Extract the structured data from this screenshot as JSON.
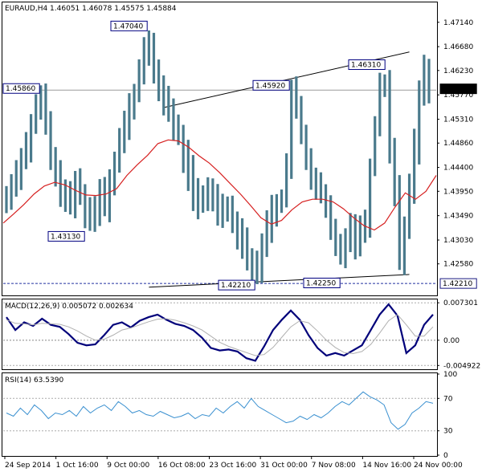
{
  "chart_data": [
    {
      "type": "candlestick",
      "header": "EURAUD,H4  1.46051 1.46078 1.45575 1.45884",
      "y_ticks": [
        "1.47140",
        "1.46680",
        "1.46230",
        "1.45770",
        "1.45310",
        "1.44860",
        "1.44400",
        "1.43950",
        "1.43490",
        "1.43030",
        "1.42580"
      ],
      "ylim": [
        1.42,
        1.475
      ],
      "last_price_label": "1.45884",
      "last_price": 1.45884,
      "price_line": {
        "label": "1.45860",
        "value": 1.4586
      },
      "support_line": {
        "label": "1.42210",
        "value": 1.4221
      },
      "annotations": [
        {
          "label": "1.47040",
          "value": 1.4704
        },
        {
          "label": "1.43130",
          "value": 1.4313
        },
        {
          "label": "1.45920",
          "value": 1.4592
        },
        {
          "label": "1.46310",
          "value": 1.4631
        },
        {
          "label": "1.42210",
          "value": 1.4221
        },
        {
          "label": "1.42250",
          "value": 1.4225
        }
      ],
      "close_series_approx": [
        1.438,
        1.441,
        1.443,
        1.446,
        1.448,
        1.452,
        1.455,
        1.457,
        1.452,
        1.446,
        1.442,
        1.44,
        1.438,
        1.437,
        1.441,
        1.439,
        1.436,
        1.434,
        1.436,
        1.44,
        1.437,
        1.442,
        1.445,
        1.449,
        1.452,
        1.455,
        1.458,
        1.462,
        1.467,
        1.466,
        1.462,
        1.459,
        1.457,
        1.455,
        1.451,
        1.45,
        1.446,
        1.443,
        1.439,
        1.437,
        1.438,
        1.44,
        1.438,
        1.436,
        1.437,
        1.436,
        1.434,
        1.432,
        1.43,
        1.427,
        1.425,
        1.424,
        1.43,
        1.433,
        1.436,
        1.437,
        1.438,
        1.445,
        1.458,
        1.455,
        1.45,
        1.446,
        1.442,
        1.44,
        1.439,
        1.436,
        1.432,
        1.429,
        1.428,
        1.431,
        1.433,
        1.43,
        1.432,
        1.434,
        1.444,
        1.452,
        1.46,
        1.46,
        1.447,
        1.44,
        1.427,
        1.433,
        1.44,
        1.448,
        1.458,
        1.462,
        1.459
      ],
      "ma_series_approx": [
        1.4335,
        1.4352,
        1.437,
        1.439,
        1.4405,
        1.4412,
        1.4407,
        1.4397,
        1.4388,
        1.4387,
        1.439,
        1.44,
        1.4425,
        1.4445,
        1.4463,
        1.4485,
        1.4492,
        1.449,
        1.4478,
        1.4462,
        1.4448,
        1.443,
        1.441,
        1.439,
        1.4368,
        1.4345,
        1.4333,
        1.434,
        1.436,
        1.4375,
        1.438,
        1.438,
        1.4375,
        1.4362,
        1.4345,
        1.433,
        1.4322,
        1.4335,
        1.4365,
        1.4392,
        1.438,
        1.4395,
        1.4425
      ]
    },
    {
      "type": "line",
      "header": "MACD(12,26,9) 0.005072 0.002634",
      "y_ticks": [
        "0.007301",
        "0.00",
        "-0.004922"
      ],
      "ylim": [
        -0.0055,
        0.0078
      ],
      "series": [
        {
          "name": "MACD",
          "values": [
            0.0045,
            0.002,
            0.0035,
            0.0028,
            0.0042,
            0.003,
            0.0026,
            0.0012,
            -0.0005,
            -0.001,
            -0.0008,
            0.001,
            0.003,
            0.0035,
            0.0025,
            0.0038,
            0.0045,
            0.005,
            0.004,
            0.0032,
            0.0028,
            0.002,
            0.0005,
            -0.0015,
            -0.002,
            -0.0018,
            -0.0022,
            -0.0035,
            -0.004,
            -0.0012,
            0.002,
            0.004,
            0.0058,
            0.004,
            0.001,
            -0.0015,
            -0.003,
            -0.0025,
            -0.003,
            -0.002,
            -0.001,
            0.002,
            0.005,
            0.007,
            0.0048,
            -0.0025,
            -0.001,
            0.003,
            0.005
          ]
        },
        {
          "name": "Signal",
          "values": [
            0.004,
            0.0033,
            0.0032,
            0.003,
            0.0033,
            0.0032,
            0.0031,
            0.0026,
            0.0018,
            0.0008,
            0.0,
            0.0002,
            0.001,
            0.002,
            0.0024,
            0.003,
            0.0036,
            0.0041,
            0.0042,
            0.0039,
            0.0034,
            0.0028,
            0.002,
            0.0008,
            -0.0004,
            -0.0012,
            -0.0018,
            -0.0024,
            -0.003,
            -0.0028,
            -0.0014,
            0.0006,
            0.0026,
            0.0038,
            0.0034,
            0.0018,
            0.0,
            -0.0014,
            -0.0024,
            -0.0026,
            -0.0022,
            -0.0008,
            0.0014,
            0.0038,
            0.005,
            0.003,
            0.0008,
            0.0008,
            0.0026
          ]
        }
      ]
    },
    {
      "type": "line",
      "header": "RSI(14) 63.5390",
      "y_ticks": [
        "100",
        "70",
        "30",
        "0"
      ],
      "ylim": [
        0,
        100
      ],
      "series": [
        {
          "name": "RSI",
          "values": [
            52,
            48,
            58,
            50,
            62,
            55,
            45,
            52,
            50,
            55,
            48,
            60,
            52,
            58,
            62,
            55,
            66,
            60,
            52,
            55,
            50,
            48,
            54,
            50,
            46,
            48,
            52,
            45,
            50,
            48,
            58,
            52,
            60,
            66,
            58,
            70,
            60,
            55,
            50,
            45,
            40,
            42,
            48,
            44,
            50,
            46,
            52,
            60,
            66,
            62,
            70,
            78,
            72,
            68,
            62,
            40,
            32,
            38,
            52,
            58,
            66,
            64
          ]
        }
      ]
    }
  ],
  "x_axis": {
    "tick_labels": [
      "24 Sep 2014",
      "1 Oct 16:00",
      "9 Oct 00:00",
      "16 Oct 08:00",
      "23 Oct 16:00",
      "31 Oct 00:00",
      "7 Nov 08:00",
      "14 Nov 16:00",
      "24 Nov 00:00"
    ]
  },
  "colors": {
    "bars": "#4a7a8c",
    "moving_average": "#d62020",
    "macd_line": "#00007a",
    "signal_line": "#b0b0b0",
    "rsi_line": "#3a90d0",
    "trend_lines": "#000000",
    "label_text": "#000080"
  }
}
